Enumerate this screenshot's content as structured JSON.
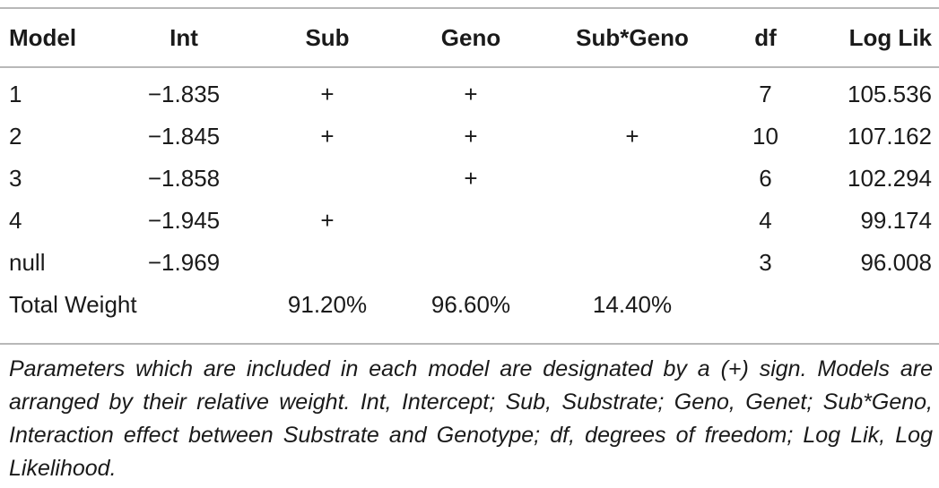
{
  "table": {
    "headers": [
      "Model",
      "Int",
      "Sub",
      "Geno",
      "Sub*Geno",
      "df",
      "Log Lik"
    ],
    "rows": [
      [
        "1",
        "−1.835",
        "+",
        "+",
        "",
        "7",
        "105.536"
      ],
      [
        "2",
        "−1.845",
        "+",
        "+",
        "+",
        "10",
        "107.162"
      ],
      [
        "3",
        "−1.858",
        "",
        "+",
        "",
        "6",
        "102.294"
      ],
      [
        "4",
        "−1.945",
        "+",
        "",
        "",
        "4",
        "99.174"
      ],
      [
        "null",
        "−1.969",
        "",
        "",
        "",
        "3",
        "96.008"
      ]
    ],
    "total_row": {
      "label": "Total Weight",
      "sub": "91.20%",
      "geno": "96.60%",
      "subgeno": "14.40%"
    }
  },
  "caption": "Parameters which are included in each model are designated by a (+) sign. Models are arranged by their relative weight. Int, Intercept; Sub, Substrate; Geno, Genet; Sub*Geno, Interaction effect between Substrate and Genotype; df, degrees of freedom; Log Lik, Log Likelihood."
}
